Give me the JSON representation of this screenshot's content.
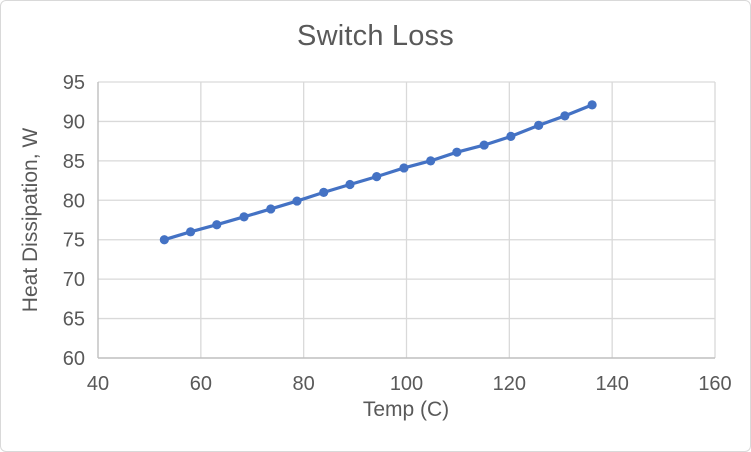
{
  "chart_data": {
    "type": "line",
    "title": "Switch Loss",
    "xlabel": "Temp (C)",
    "ylabel": "Heat Dissipation, W",
    "x": [
      52.9,
      58.0,
      63.1,
      68.4,
      73.6,
      78.7,
      83.9,
      89.0,
      94.2,
      99.5,
      104.7,
      109.8,
      115.1,
      120.3,
      125.7,
      130.8,
      136.1
    ],
    "y": [
      75.0,
      76.0,
      76.9,
      77.9,
      78.9,
      79.9,
      81.0,
      82.0,
      83.0,
      84.1,
      85.0,
      86.1,
      87.0,
      88.1,
      89.5,
      90.7,
      92.1
    ],
    "xlim": [
      40,
      160
    ],
    "ylim": [
      60,
      95
    ],
    "x_ticks": [
      40,
      60,
      80,
      100,
      120,
      140,
      160
    ],
    "y_ticks": [
      60,
      65,
      70,
      75,
      80,
      85,
      90,
      95
    ],
    "grid": true,
    "legend": false,
    "marker": "circle",
    "colors": {
      "series": "#4472C4",
      "text": "#595959",
      "gridline": "#D9D9D9",
      "axis_line": "#BFBFBF",
      "border": "#D9D9D9",
      "background": "#FFFFFF"
    }
  }
}
